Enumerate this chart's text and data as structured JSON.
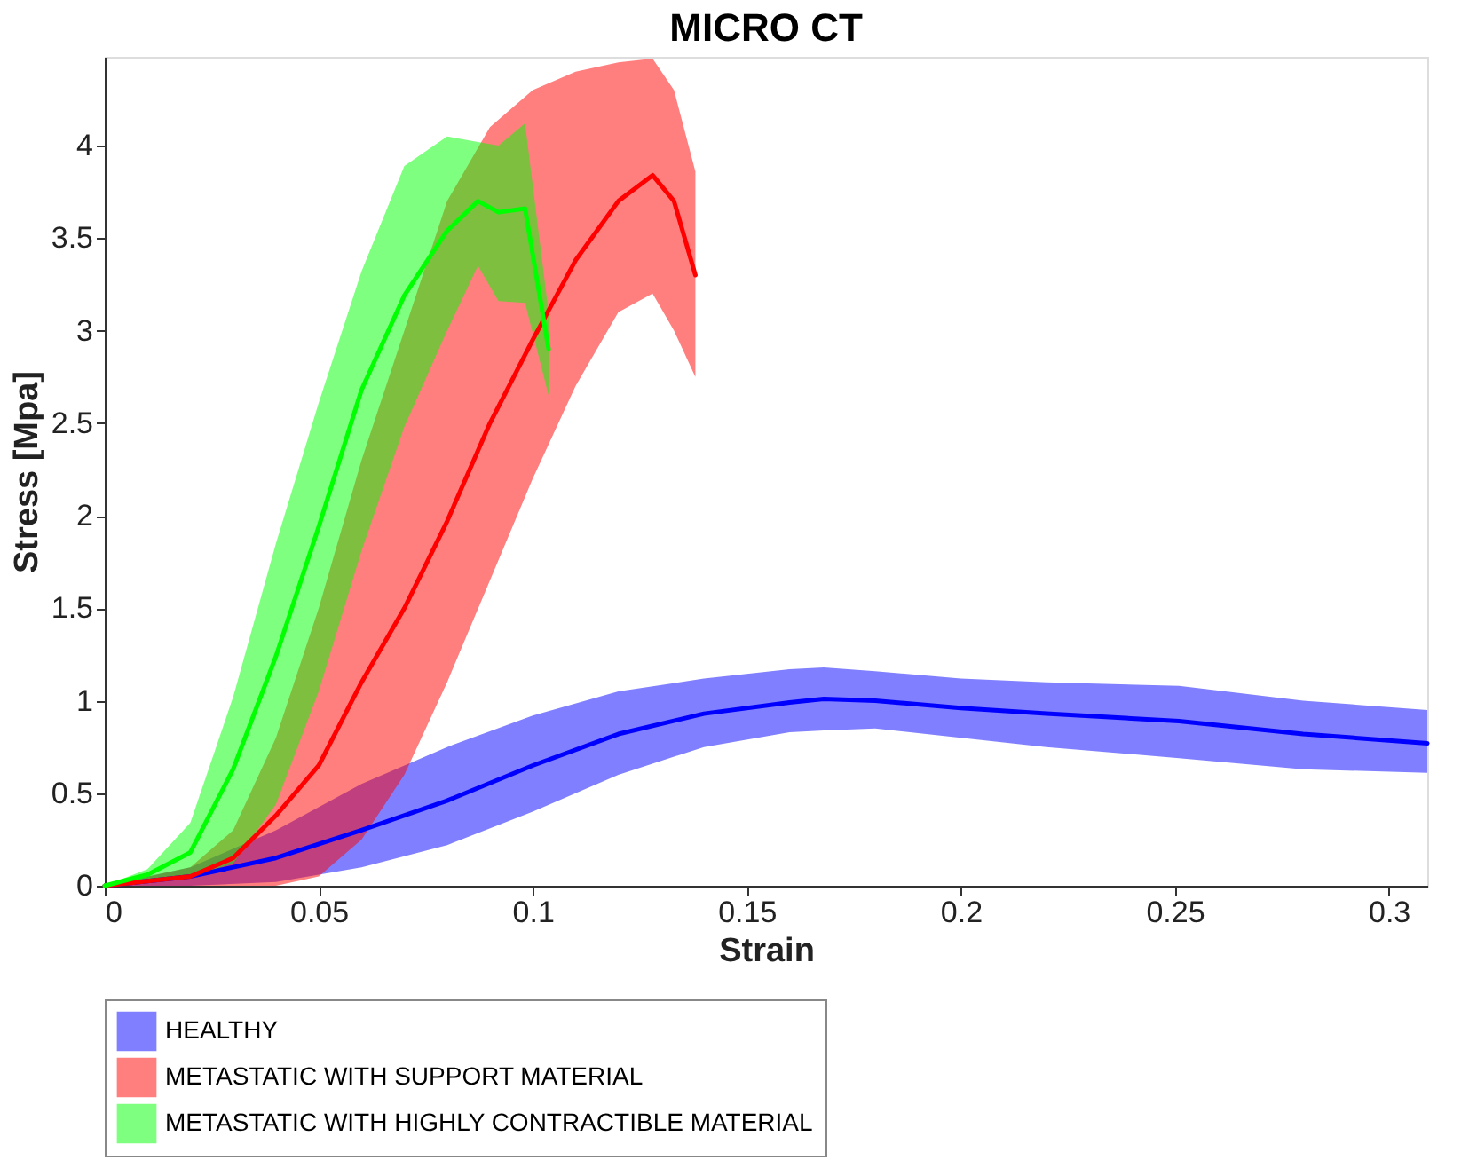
{
  "chart_data": {
    "type": "line",
    "title": "MICRO CT",
    "xlabel": "Strain",
    "ylabel": "Stress [Mpa]",
    "xlim": [
      0,
      0.309
    ],
    "ylim": [
      0,
      4.48
    ],
    "xticks": [
      0,
      0.05,
      0.1,
      0.15,
      0.2,
      0.25,
      0.3
    ],
    "yticks": [
      0,
      0.5,
      1,
      1.5,
      2,
      2.5,
      3,
      3.5,
      4
    ],
    "grid": false,
    "legend": "bottom",
    "marker": "none",
    "line_style": "solid",
    "series": [
      {
        "name": "HEALTHY",
        "color": "#0000ff",
        "x": [
          0,
          0.02,
          0.04,
          0.06,
          0.08,
          0.1,
          0.12,
          0.14,
          0.16,
          0.168,
          0.18,
          0.2,
          0.22,
          0.251,
          0.28,
          0.309
        ],
        "values": [
          0,
          0.05,
          0.15,
          0.3,
          0.46,
          0.65,
          0.82,
          0.93,
          0.99,
          1.01,
          1.0,
          0.96,
          0.93,
          0.89,
          0.82,
          0.77
        ],
        "upper": [
          0,
          0.1,
          0.3,
          0.55,
          0.75,
          0.92,
          1.05,
          1.12,
          1.17,
          1.18,
          1.16,
          1.12,
          1.1,
          1.08,
          1.0,
          0.95
        ],
        "lower": [
          0,
          0,
          0.02,
          0.1,
          0.22,
          0.4,
          0.6,
          0.75,
          0.83,
          0.84,
          0.85,
          0.8,
          0.75,
          0.69,
          0.63,
          0.61
        ]
      },
      {
        "name": "METASTATIC WITH SUPPORT MATERIAL",
        "color": "#ff0000",
        "x": [
          0,
          0.02,
          0.03,
          0.04,
          0.05,
          0.06,
          0.07,
          0.08,
          0.09,
          0.1,
          0.11,
          0.12,
          0.128,
          0.133,
          0.138
        ],
        "values": [
          0,
          0.05,
          0.15,
          0.38,
          0.65,
          1.1,
          1.5,
          1.97,
          2.5,
          2.95,
          3.38,
          3.7,
          3.84,
          3.7,
          3.3
        ],
        "upper": [
          0,
          0.1,
          0.3,
          0.8,
          1.5,
          2.3,
          3.0,
          3.7,
          4.1,
          4.3,
          4.4,
          4.45,
          4.47,
          4.3,
          3.86
        ],
        "lower": [
          0,
          0,
          0,
          0,
          0.05,
          0.25,
          0.6,
          1.1,
          1.65,
          2.2,
          2.7,
          3.1,
          3.2,
          3.0,
          2.75
        ]
      },
      {
        "name": "METASTATIC WITH HIGHLY CONTRACTIBLE MATERIAL",
        "color": "#00ff00",
        "x": [
          0,
          0.01,
          0.02,
          0.03,
          0.04,
          0.05,
          0.06,
          0.07,
          0.08,
          0.0872,
          0.092,
          0.0982,
          0.1037
        ],
        "values": [
          0,
          0.06,
          0.18,
          0.63,
          1.24,
          1.94,
          2.68,
          3.19,
          3.54,
          3.7,
          3.64,
          3.66,
          2.9
        ],
        "upper": [
          0,
          0.09,
          0.34,
          1.02,
          1.85,
          2.61,
          3.32,
          3.89,
          4.05,
          4.02,
          4.0,
          4.12,
          3.1
        ],
        "lower": [
          0,
          0.02,
          0.05,
          0.12,
          0.44,
          1.05,
          1.81,
          2.48,
          3.0,
          3.35,
          3.16,
          3.15,
          2.65
        ]
      }
    ]
  }
}
